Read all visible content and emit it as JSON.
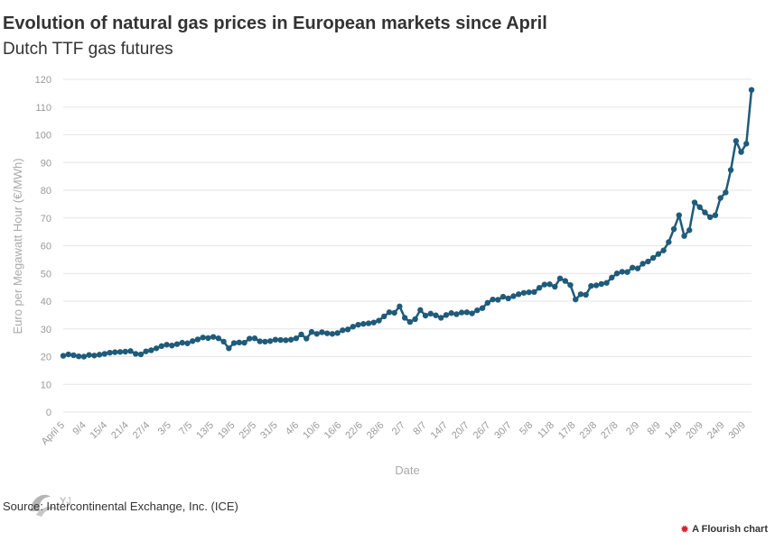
{
  "chart_data": {
    "type": "line",
    "title": "Evolution of natural gas prices in European markets since April",
    "subtitle": "Dutch TTF gas futures",
    "xlabel": "Date",
    "ylabel": "Euro per Megawatt Hour (€/MWh)",
    "ylim": [
      0,
      120
    ],
    "yticks": [
      0,
      10,
      20,
      30,
      40,
      50,
      60,
      70,
      80,
      90,
      100,
      110,
      120
    ],
    "grid": true,
    "x_tick_labels": [
      "April 5",
      "9/4",
      "15/4",
      "21/4",
      "27/4",
      "3/5",
      "7/5",
      "13/5",
      "19/5",
      "25/5",
      "31/5",
      "4/6",
      "10/6",
      "16/6",
      "22/6",
      "28/6",
      "2/7",
      "8/7",
      "14/7",
      "20/7",
      "26/7",
      "30/7",
      "5/8",
      "11/8",
      "17/8",
      "23/8",
      "27/8",
      "2/9",
      "8/9",
      "14/9",
      "20/9",
      "24/9",
      "30/9"
    ],
    "series": [
      {
        "color": "#1f5b7a",
        "values": [
          20.3,
          20.8,
          20.5,
          20.1,
          20.0,
          20.6,
          20.4,
          20.7,
          21.0,
          21.4,
          21.6,
          21.7,
          21.8,
          22.0,
          21.0,
          20.8,
          21.9,
          22.3,
          23.0,
          23.8,
          24.3,
          24.0,
          24.5,
          25.0,
          24.8,
          25.6,
          26.2,
          26.9,
          26.7,
          27.1,
          26.6,
          25.4,
          23.0,
          24.9,
          25.1,
          25.0,
          26.5,
          26.6,
          25.5,
          25.4,
          25.6,
          26.1,
          26.0,
          25.9,
          26.1,
          26.6,
          28.0,
          26.5,
          28.9,
          28.2,
          28.8,
          28.4,
          28.2,
          28.5,
          29.5,
          29.8,
          30.8,
          31.5,
          31.8,
          32.0,
          32.3,
          33.0,
          34.5,
          36.0,
          35.8,
          38.1,
          34.0,
          32.5,
          33.5,
          36.8,
          34.8,
          35.5,
          34.9,
          34.0,
          35.0,
          35.7,
          35.3,
          35.9,
          36.0,
          35.6,
          36.7,
          37.5,
          39.4,
          40.6,
          40.5,
          41.6,
          41.0,
          41.8,
          42.5,
          43.0,
          43.2,
          43.3,
          44.8,
          46.0,
          46.1,
          45.2,
          48.2,
          47.3,
          45.8,
          40.6,
          42.5,
          42.3,
          45.5,
          45.7,
          46.2,
          46.6,
          48.5,
          50.0,
          50.6,
          50.5,
          52.1,
          51.8,
          53.5,
          54.3,
          55.6,
          57.0,
          58.3,
          61.3,
          66.0,
          71.0,
          63.5,
          65.6,
          75.6,
          73.9,
          72.0,
          70.3,
          71.0,
          77.2,
          79.2,
          87.3,
          97.8,
          93.8,
          96.8,
          116.2
        ]
      }
    ]
  },
  "source_text": "Source: Intercontinental Exchange, Inc. (ICE)",
  "watermark_text": "YJC",
  "credit": "A Flourish chart"
}
